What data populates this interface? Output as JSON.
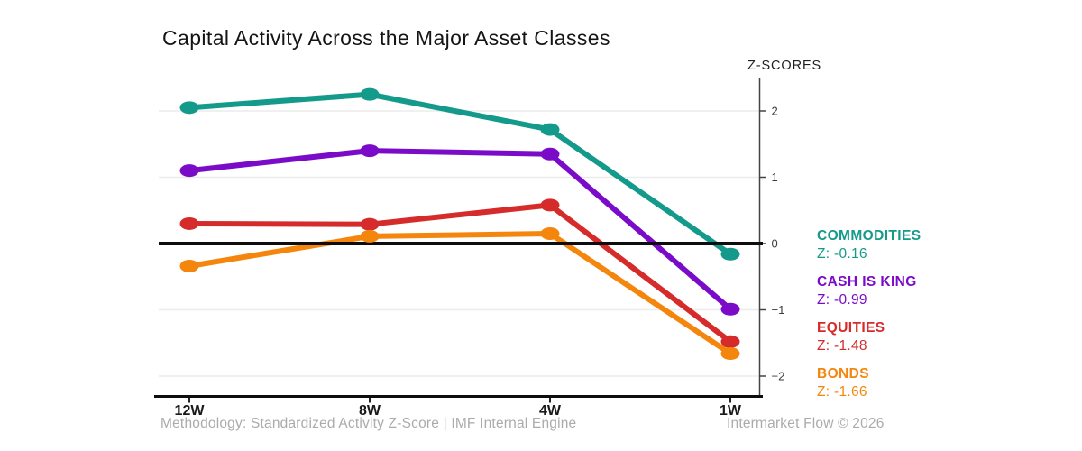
{
  "title": "Capital Activity Across the Major Asset Classes",
  "axis_title": "Z-SCORES",
  "footer": {
    "left": "Methodology: Standardized Activity Z-Score | IMF Internal Engine",
    "right": "Intermarket Flow © 2026"
  },
  "legend": [
    {
      "name": "COMMODITIES",
      "z_label": "Z: -0.16",
      "color": "#149a8a"
    },
    {
      "name": "CASH IS KING",
      "z_label": "Z: -0.99",
      "color": "#7a0cc9"
    },
    {
      "name": "EQUITIES",
      "z_label": "Z: -1.48",
      "color": "#d62b2b"
    },
    {
      "name": "BONDS",
      "z_label": "Z: -1.66",
      "color": "#f5860d"
    }
  ],
  "chart_data": {
    "type": "line",
    "title": "Capital Activity Across the Major Asset Classes",
    "ylabel": "Z-SCORES",
    "xlabel": "",
    "categories": [
      "12W",
      "8W",
      "4W",
      "1W"
    ],
    "series": [
      {
        "name": "COMMODITIES",
        "color": "#149a8a",
        "values": [
          2.05,
          2.25,
          1.72,
          -0.16
        ]
      },
      {
        "name": "CASH IS KING",
        "color": "#7a0cc9",
        "values": [
          1.1,
          1.4,
          1.35,
          -0.99
        ]
      },
      {
        "name": "EQUITIES",
        "color": "#d62b2b",
        "values": [
          0.3,
          0.29,
          0.58,
          -1.48
        ]
      },
      {
        "name": "BONDS",
        "color": "#f5860d",
        "values": [
          -0.34,
          0.11,
          0.15,
          -1.66
        ]
      }
    ],
    "y_ticks": [
      2,
      1,
      0,
      -1,
      -2
    ],
    "ylim": [
      -2.35,
      2.45
    ],
    "zero_line": true,
    "grid": "horizontal",
    "axis_side": "right",
    "legend_position": "right"
  }
}
